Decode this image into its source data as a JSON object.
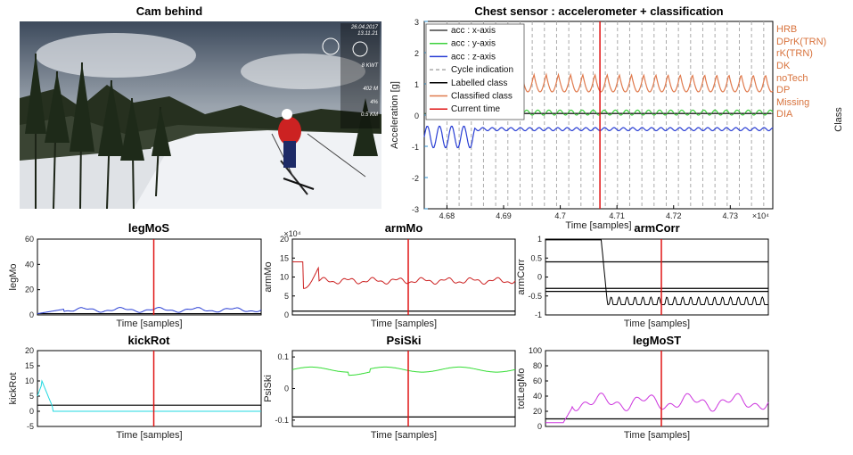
{
  "camera": {
    "title": "Cam behind",
    "overlay": {
      "date": "26.04.2017",
      "time": "13.11.21",
      "power": "8 KWT",
      "elevation": "402 M",
      "grade": "4%",
      "distance": "0.5 KM"
    }
  },
  "chart_data": [
    {
      "id": "chest",
      "type": "line",
      "title": "Chest sensor : accelerometer + classification",
      "xlabel": "Time [samples]",
      "ylabel": "Acceleration [g]",
      "ylabel_right": "Class",
      "xlim": [
        46760,
        46837
      ],
      "ylim": [
        -3,
        3
      ],
      "x_exponent": "×10⁴",
      "x_ticks": [
        46800,
        46850,
        46900,
        46950,
        47000,
        47050,
        47100,
        47150,
        47200,
        47250,
        47300,
        47350
      ],
      "x_tick_labels": [
        "4.68",
        "4.69",
        "4.7",
        "4.71",
        "4.72",
        "4.73"
      ],
      "y_ticks": [
        -3,
        -2,
        -1,
        0,
        1,
        2,
        3
      ],
      "class_labels": [
        "HRB",
        "DPrK(TRN)",
        "rK(TRN)",
        "DK",
        "noTech",
        "DP",
        "Missing",
        "DIA"
      ],
      "legend": [
        "acc : x-axis",
        "acc : y-axis",
        "acc : z-axis",
        "Cycle indication",
        "Labelled class",
        "Classified class",
        "Current time"
      ],
      "current_time": 47070,
      "series_colors": {
        "x": "#444444",
        "y": "#3dd13d",
        "z": "#2a3fd4",
        "cycle": "#aaaaaa",
        "labelled": "#000000",
        "classified": "#e07a4d",
        "current": "#e01414",
        "axis_left": "#2b8fcf",
        "axis_right": "#d8733d"
      }
    },
    {
      "id": "legMoS",
      "type": "line",
      "title": "legMoS",
      "ylabel": "legMo",
      "xlabel": "Time [samples]",
      "ylim": [
        0,
        60
      ],
      "y_ticks": [
        0,
        20,
        40,
        60
      ],
      "threshold": 1,
      "current_time": 0.52,
      "color": "#2a3fd4"
    },
    {
      "id": "armMo",
      "type": "line",
      "title": "armMo",
      "ylabel": "armMo",
      "xlabel": "Time [samples]",
      "ylim": [
        0,
        200000
      ],
      "y_ticks": [
        0,
        50000,
        100000,
        150000,
        200000
      ],
      "y_tick_labels": [
        "0",
        "5",
        "10",
        "15",
        "20"
      ],
      "y_exponent": "×10⁴",
      "threshold": 10000,
      "current_time": 0.52,
      "color": "#cc2020"
    },
    {
      "id": "armCorr",
      "type": "line",
      "title": "armCorr",
      "ylabel": "armCorr",
      "xlabel": "Time [samples]",
      "ylim": [
        -1,
        1
      ],
      "y_ticks": [
        -1,
        -0.5,
        0,
        0.5,
        1
      ],
      "y_tick_labels": [
        "-1",
        "-0.5",
        "0",
        "0.5",
        "1"
      ],
      "thresholds": [
        0.4,
        -0.3,
        -0.38
      ],
      "current_time": 0.52,
      "color": "#000000"
    },
    {
      "id": "kickRot",
      "type": "line",
      "title": "kickRot",
      "ylabel": "kickRot",
      "xlabel": "Time [samples]",
      "ylim": [
        -5,
        20
      ],
      "y_ticks": [
        -5,
        0,
        5,
        10,
        15,
        20
      ],
      "threshold": 2,
      "current_time": 0.52,
      "color": "#22d8e0"
    },
    {
      "id": "PsiSki",
      "type": "line",
      "title": "PsiSki",
      "ylabel": "PsiSki",
      "xlabel": "Time [samples]",
      "ylim": [
        -0.12,
        0.12
      ],
      "y_ticks": [
        -0.1,
        0,
        0.1
      ],
      "y_tick_labels": [
        "-0.1",
        "0",
        "0.1"
      ],
      "y_tick_labels_shown": [
        "0.1",
        "0",
        "-0.1"
      ],
      "threshold": -0.09,
      "current_time": 0.52,
      "color": "#33dd33"
    },
    {
      "id": "legMoST",
      "type": "line",
      "title": "legMoST",
      "ylabel": "totLegMo",
      "xlabel": "Time [samples]",
      "ylim": [
        0,
        100
      ],
      "y_ticks": [
        0,
        20,
        40,
        60,
        80,
        100
      ],
      "threshold": 10,
      "current_time": 0.52,
      "color": "#cc33dd"
    }
  ]
}
